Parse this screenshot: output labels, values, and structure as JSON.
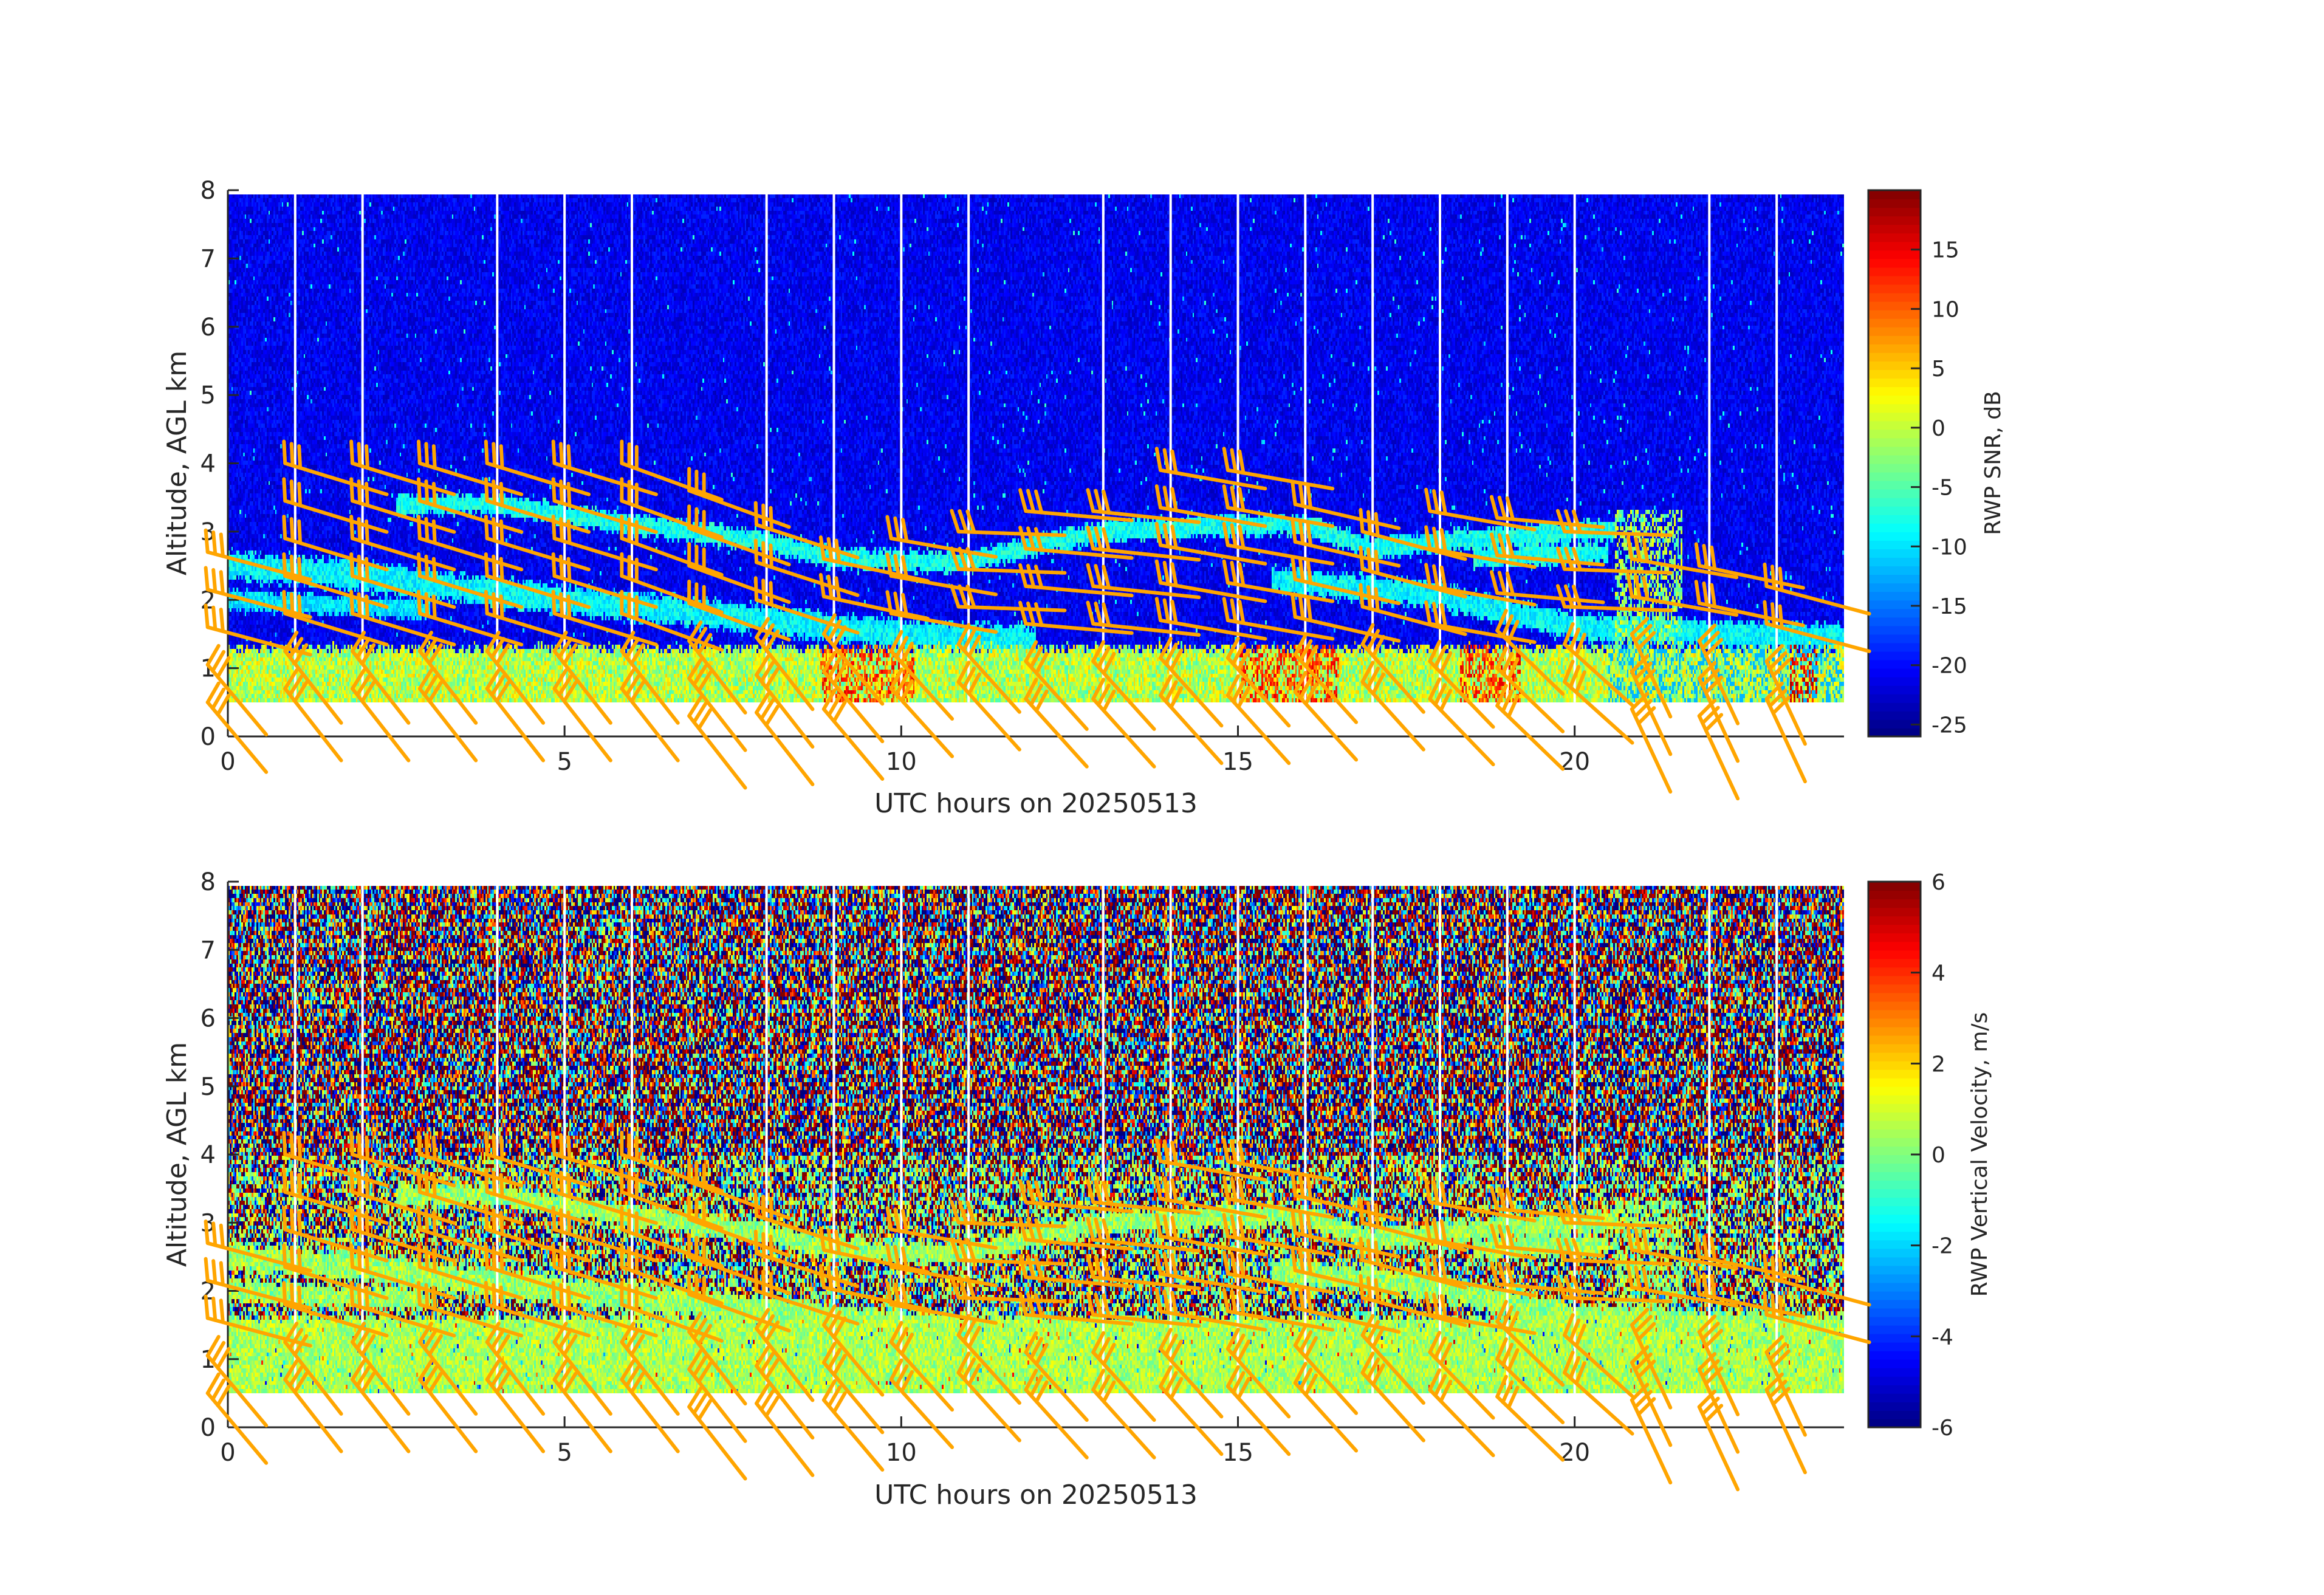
{
  "chart_data": [
    {
      "type": "heatmap",
      "name": "snr",
      "title": "",
      "xlabel": "UTC hours on 20250513",
      "ylabel": "Altitude, AGL km",
      "xlim": [
        0,
        24
      ],
      "ylim": [
        0,
        8
      ],
      "xticks": [
        0,
        5,
        10,
        15,
        20
      ],
      "yticks": [
        0,
        1,
        2,
        3,
        4,
        5,
        6,
        7,
        8
      ],
      "colorbar_label": "RWP SNR, dB",
      "clim": [
        -26,
        20
      ],
      "cticks": [
        -25,
        -20,
        -15,
        -10,
        -5,
        0,
        5,
        10,
        15
      ],
      "colormap": "jet",
      "data_altitude_range_km": [
        0.5,
        7.9
      ],
      "background_value": -21,
      "surface_layer": {
        "top_km": 1.3,
        "value_range": [
          -6,
          5
        ]
      },
      "hot_spots": [
        {
          "t": [
            8.8,
            10.2
          ],
          "value": 12
        },
        {
          "t": [
            15,
            16.5
          ],
          "value": 12
        },
        {
          "t": [
            18.3,
            19.2
          ],
          "value": 12
        },
        {
          "t": [
            23.2,
            23.6
          ],
          "value": 15
        }
      ],
      "gap_hours": [
        1,
        2,
        4,
        5,
        6,
        8,
        9,
        10,
        11,
        13,
        14,
        15,
        16,
        17,
        18,
        19,
        20,
        22,
        23
      ]
    },
    {
      "type": "heatmap",
      "name": "velocity",
      "title": "",
      "xlabel": "UTC hours on 20250513",
      "ylabel": "Altitude, AGL km",
      "xlim": [
        0,
        24
      ],
      "ylim": [
        0,
        8
      ],
      "xticks": [
        0,
        5,
        10,
        15,
        20
      ],
      "yticks": [
        0,
        1,
        2,
        3,
        4,
        5,
        6,
        7,
        8
      ],
      "colorbar_label": "RWP Vertical Velocity, m/s",
      "clim": [
        -6,
        6
      ],
      "cticks": [
        -6,
        -4,
        -2,
        0,
        2,
        4,
        6
      ],
      "colormap": "jet",
      "data_altitude_range_km": [
        0.5,
        7.9
      ],
      "low_level_top_km": 1.6,
      "low_level_value_range": [
        -0.5,
        1.5
      ],
      "noise_value_range": [
        -9,
        9
      ],
      "gap_hours": [
        1,
        2,
        4,
        5,
        6,
        8,
        9,
        10,
        11,
        13,
        14,
        15,
        16,
        17,
        18,
        19,
        20,
        22,
        23
      ]
    }
  ],
  "layers": [
    {
      "points": [
        [
          2.5,
          3.4
        ],
        [
          4,
          3.4
        ],
        [
          6,
          3.1
        ],
        [
          8,
          2.85
        ],
        [
          9,
          2.6
        ],
        [
          11,
          2.55
        ],
        [
          12,
          2.8
        ],
        [
          13,
          3.0
        ],
        [
          15,
          3.1
        ],
        [
          16,
          3.1
        ],
        [
          17,
          2.75
        ],
        [
          18,
          2.85
        ],
        [
          20,
          3.0
        ],
        [
          20.6,
          3.0
        ]
      ],
      "thickness_km": 0.16,
      "value": -8
    },
    {
      "points": [
        [
          0,
          2.5
        ],
        [
          2,
          2.35
        ],
        [
          4,
          2.1
        ],
        [
          6,
          1.9
        ],
        [
          8,
          1.7
        ],
        [
          10,
          1.5
        ],
        [
          12,
          1.4
        ]
      ],
      "thickness_km": 0.22,
      "value": -9
    },
    {
      "points": [
        [
          0,
          2.0
        ],
        [
          3,
          1.85
        ]
      ],
      "thickness_km": 0.15,
      "value": -10
    },
    {
      "points": [
        [
          15.5,
          2.3
        ],
        [
          18,
          2.05
        ],
        [
          20,
          1.6
        ],
        [
          22,
          1.5
        ],
        [
          24,
          1.45
        ]
      ],
      "thickness_km": 0.2,
      "value": -9
    },
    {
      "points": [
        [
          18.5,
          2.6
        ],
        [
          20.5,
          2.7
        ]
      ],
      "thickness_km": 0.15,
      "value": -8
    },
    {
      "points": [
        [
          20.6,
          1.3
        ],
        [
          21.6,
          3.3
        ]
      ],
      "thickness_km": 1.8,
      "value": -2,
      "vertical": true
    }
  ],
  "wind_barbs": {
    "color": "#FFA500",
    "level_step_km": 0.55,
    "columns": [
      {
        "t": -0.3,
        "top_km": 2.7,
        "dir_upper": 285,
        "dir_lower": 320,
        "feathers": 3
      },
      {
        "t": 0.85,
        "top_km": 4.0,
        "dir_upper": 287,
        "dir_lower": 322,
        "feathers": 3
      },
      {
        "t": 1.85,
        "top_km": 4.0,
        "dir_upper": 287,
        "dir_lower": 322,
        "feathers": 3
      },
      {
        "t": 2.85,
        "top_km": 4.0,
        "dir_upper": 287,
        "dir_lower": 322,
        "feathers": 3
      },
      {
        "t": 3.85,
        "top_km": 4.0,
        "dir_upper": 287,
        "dir_lower": 322,
        "feathers": 3
      },
      {
        "t": 4.85,
        "top_km": 4.0,
        "dir_upper": 287,
        "dir_lower": 322,
        "feathers": 3
      },
      {
        "t": 5.85,
        "top_km": 4.0,
        "dir_upper": 290,
        "dir_lower": 322,
        "feathers": 3
      },
      {
        "t": 6.85,
        "top_km": 3.6,
        "dir_upper": 290,
        "dir_lower": 322,
        "feathers": 3
      },
      {
        "t": 7.85,
        "top_km": 3.1,
        "dir_upper": 288,
        "dir_lower": 322,
        "feathers": 3
      },
      {
        "t": 8.85,
        "top_km": 2.6,
        "dir_upper": 282,
        "dir_lower": 320,
        "feathers": 3
      },
      {
        "t": 9.85,
        "top_km": 2.9,
        "dir_upper": 280,
        "dir_lower": 318,
        "feathers": 3
      },
      {
        "t": 10.85,
        "top_km": 3.0,
        "dir_upper": 272,
        "dir_lower": 318,
        "feathers": 3
      },
      {
        "t": 11.85,
        "top_km": 3.3,
        "dir_upper": 275,
        "dir_lower": 318,
        "feathers": 3
      },
      {
        "t": 12.85,
        "top_km": 3.3,
        "dir_upper": 276,
        "dir_lower": 318,
        "feathers": 3
      },
      {
        "t": 13.85,
        "top_km": 3.9,
        "dir_upper": 280,
        "dir_lower": 318,
        "feathers": 3
      },
      {
        "t": 14.85,
        "top_km": 3.9,
        "dir_upper": 280,
        "dir_lower": 318,
        "feathers": 3
      },
      {
        "t": 15.85,
        "top_km": 3.4,
        "dir_upper": 283,
        "dir_lower": 318,
        "feathers": 3
      },
      {
        "t": 16.85,
        "top_km": 3.0,
        "dir_upper": 285,
        "dir_lower": 318,
        "feathers": 3
      },
      {
        "t": 17.85,
        "top_km": 3.3,
        "dir_upper": 280,
        "dir_lower": 316,
        "feathers": 3
      },
      {
        "t": 18.85,
        "top_km": 3.2,
        "dir_upper": 275,
        "dir_lower": 314,
        "feathers": 3
      },
      {
        "t": 19.85,
        "top_km": 3.0,
        "dir_upper": 272,
        "dir_lower": 312,
        "feathers": 3
      },
      {
        "t": 20.85,
        "top_km": 2.6,
        "dir_upper": 280,
        "dir_lower": 335,
        "feathers": 3
      },
      {
        "t": 21.85,
        "top_km": 2.5,
        "dir_upper": 282,
        "dir_lower": 335,
        "feathers": 3
      },
      {
        "t": 22.85,
        "top_km": 2.2,
        "dir_upper": 285,
        "dir_lower": 335,
        "feathers": 3
      }
    ]
  }
}
